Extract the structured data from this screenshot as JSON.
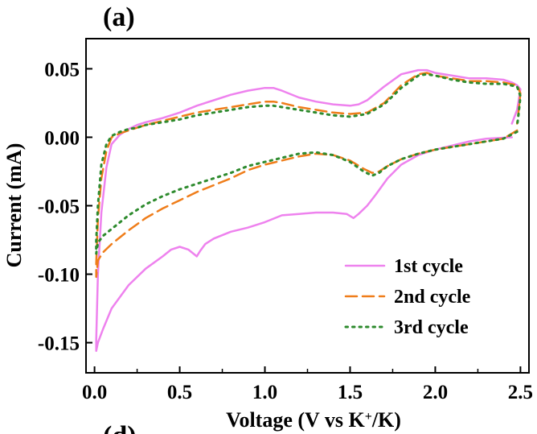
{
  "chart_data": {
    "type": "line",
    "panel_label": "(a)",
    "cut_panel_label": "(d)",
    "title": "",
    "xlabel": "Voltage (V vs K+/K)",
    "xlabel_parts": [
      "Voltage (V vs K",
      "+",
      "/K)"
    ],
    "ylabel": "Current (mA)",
    "xlim": [
      -0.05,
      2.55
    ],
    "ylim": [
      -0.172,
      0.072
    ],
    "xticks": [
      0.0,
      0.5,
      1.0,
      1.5,
      2.0,
      2.5
    ],
    "xtick_labels": [
      "0.0",
      "0.5",
      "1.0",
      "1.5",
      "2.0",
      "2.5"
    ],
    "yticks": [
      0.05,
      0.0,
      -0.05,
      -0.1,
      -0.15
    ],
    "ytick_labels": [
      "0.05",
      "0.00",
      "-0.05",
      "-0.10",
      "-0.15"
    ],
    "legend_position": "bottom-right",
    "series": [
      {
        "name": "1st cycle",
        "color": "#ee82ee",
        "dash": "solid",
        "x": [
          2.45,
          2.3,
          2.2,
          2.1,
          2.0,
          1.9,
          1.8,
          1.72,
          1.65,
          1.6,
          1.55,
          1.52,
          1.48,
          1.4,
          1.3,
          1.2,
          1.1,
          1.0,
          0.9,
          0.8,
          0.7,
          0.65,
          0.62,
          0.6,
          0.55,
          0.5,
          0.45,
          0.4,
          0.3,
          0.2,
          0.1,
          0.05,
          0.02,
          0.01,
          0.01,
          0.02,
          0.04,
          0.07,
          0.1,
          0.15,
          0.2,
          0.25,
          0.3,
          0.4,
          0.5,
          0.6,
          0.7,
          0.8,
          0.9,
          1.0,
          1.05,
          1.1,
          1.2,
          1.3,
          1.4,
          1.5,
          1.55,
          1.6,
          1.7,
          1.8,
          1.9,
          1.95,
          2.0,
          2.1,
          2.2,
          2.3,
          2.4,
          2.45,
          2.48,
          2.5,
          2.48,
          2.45
        ],
        "y": [
          0.0,
          -0.001,
          -0.003,
          -0.006,
          -0.009,
          -0.013,
          -0.02,
          -0.03,
          -0.042,
          -0.05,
          -0.056,
          -0.059,
          -0.056,
          -0.055,
          -0.055,
          -0.056,
          -0.057,
          -0.062,
          -0.066,
          -0.069,
          -0.074,
          -0.078,
          -0.083,
          -0.087,
          -0.082,
          -0.08,
          -0.082,
          -0.087,
          -0.096,
          -0.108,
          -0.125,
          -0.14,
          -0.15,
          -0.156,
          -0.148,
          -0.1,
          -0.055,
          -0.022,
          -0.005,
          0.002,
          0.006,
          0.009,
          0.011,
          0.014,
          0.018,
          0.023,
          0.027,
          0.031,
          0.034,
          0.036,
          0.036,
          0.034,
          0.029,
          0.026,
          0.024,
          0.023,
          0.024,
          0.027,
          0.037,
          0.046,
          0.049,
          0.049,
          0.047,
          0.045,
          0.043,
          0.043,
          0.042,
          0.04,
          0.038,
          0.035,
          0.02,
          0.01
        ]
      },
      {
        "name": "2nd cycle",
        "color": "#ef7d1a",
        "dash": "dashed",
        "x": [
          2.48,
          2.4,
          2.3,
          2.2,
          2.1,
          2.0,
          1.9,
          1.8,
          1.72,
          1.67,
          1.63,
          1.58,
          1.5,
          1.4,
          1.3,
          1.2,
          1.1,
          1.0,
          0.9,
          0.8,
          0.7,
          0.6,
          0.5,
          0.4,
          0.3,
          0.2,
          0.1,
          0.05,
          0.02,
          0.01,
          0.01,
          0.02,
          0.04,
          0.07,
          0.1,
          0.15,
          0.2,
          0.25,
          0.3,
          0.4,
          0.5,
          0.6,
          0.7,
          0.8,
          0.9,
          1.0,
          1.05,
          1.1,
          1.2,
          1.3,
          1.4,
          1.5,
          1.6,
          1.7,
          1.8,
          1.9,
          1.95,
          2.0,
          2.1,
          2.2,
          2.3,
          2.4,
          2.48,
          2.5,
          2.49,
          2.48
        ],
        "y": [
          0.005,
          -0.001,
          -0.003,
          -0.005,
          -0.007,
          -0.009,
          -0.012,
          -0.016,
          -0.021,
          -0.025,
          -0.026,
          -0.023,
          -0.017,
          -0.013,
          -0.012,
          -0.014,
          -0.017,
          -0.02,
          -0.024,
          -0.03,
          -0.035,
          -0.04,
          -0.046,
          -0.052,
          -0.059,
          -0.068,
          -0.078,
          -0.084,
          -0.09,
          -0.102,
          -0.092,
          -0.06,
          -0.03,
          -0.01,
          0.0,
          0.003,
          0.005,
          0.007,
          0.009,
          0.012,
          0.015,
          0.018,
          0.02,
          0.022,
          0.024,
          0.026,
          0.026,
          0.025,
          0.022,
          0.02,
          0.018,
          0.017,
          0.018,
          0.025,
          0.038,
          0.046,
          0.047,
          0.045,
          0.043,
          0.041,
          0.041,
          0.04,
          0.038,
          0.032,
          0.02,
          0.01
        ]
      },
      {
        "name": "3rd cycle",
        "color": "#2e8b2e",
        "dash": "dotted",
        "x": [
          2.48,
          2.4,
          2.3,
          2.2,
          2.1,
          2.0,
          1.9,
          1.8,
          1.72,
          1.67,
          1.63,
          1.58,
          1.5,
          1.4,
          1.3,
          1.2,
          1.1,
          1.0,
          0.9,
          0.8,
          0.7,
          0.6,
          0.5,
          0.4,
          0.3,
          0.2,
          0.1,
          0.05,
          0.02,
          0.01,
          0.01,
          0.02,
          0.04,
          0.07,
          0.1,
          0.15,
          0.2,
          0.25,
          0.3,
          0.4,
          0.5,
          0.6,
          0.7,
          0.8,
          0.9,
          1.0,
          1.05,
          1.1,
          1.2,
          1.3,
          1.4,
          1.5,
          1.6,
          1.7,
          1.8,
          1.9,
          1.95,
          2.0,
          2.1,
          2.2,
          2.3,
          2.4,
          2.48,
          2.5,
          2.49,
          2.48
        ],
        "y": [
          0.004,
          -0.001,
          -0.003,
          -0.005,
          -0.007,
          -0.009,
          -0.012,
          -0.016,
          -0.021,
          -0.026,
          -0.028,
          -0.025,
          -0.018,
          -0.013,
          -0.011,
          -0.012,
          -0.015,
          -0.018,
          -0.021,
          -0.026,
          -0.03,
          -0.034,
          -0.038,
          -0.043,
          -0.049,
          -0.057,
          -0.067,
          -0.072,
          -0.077,
          -0.085,
          -0.076,
          -0.05,
          -0.02,
          -0.005,
          0.001,
          0.004,
          0.006,
          0.007,
          0.009,
          0.011,
          0.013,
          0.016,
          0.018,
          0.02,
          0.022,
          0.023,
          0.023,
          0.022,
          0.02,
          0.018,
          0.016,
          0.015,
          0.017,
          0.024,
          0.036,
          0.045,
          0.046,
          0.045,
          0.042,
          0.04,
          0.039,
          0.039,
          0.037,
          0.03,
          0.018,
          0.008
        ]
      }
    ]
  }
}
